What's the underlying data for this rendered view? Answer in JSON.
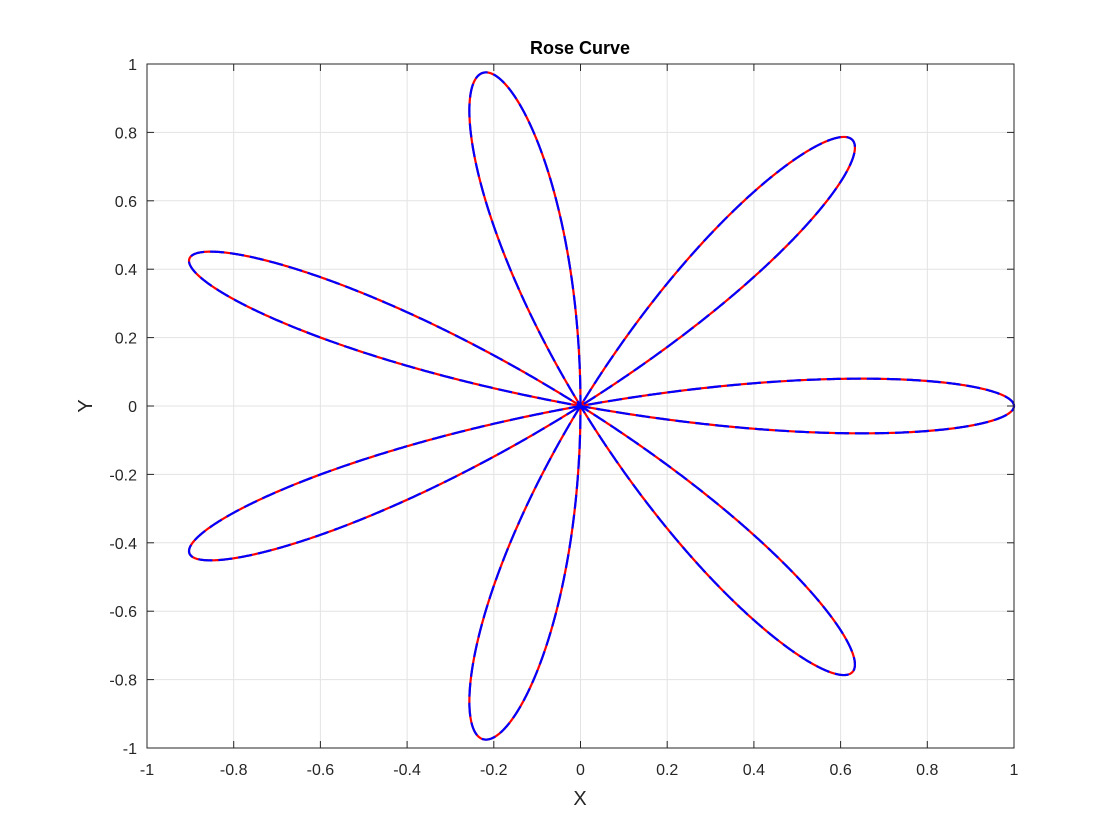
{
  "chart_data": {
    "type": "line",
    "title": "Rose Curve",
    "xlabel": "X",
    "ylabel": "Y",
    "xlim": [
      -1,
      1
    ],
    "ylim": [
      -1,
      1
    ],
    "xticks": [
      -1,
      -0.8,
      -0.6,
      -0.4,
      -0.2,
      0,
      0.2,
      0.4,
      0.6,
      0.8,
      1
    ],
    "yticks": [
      -1,
      -0.8,
      -0.6,
      -0.4,
      -0.2,
      0,
      0.2,
      0.4,
      0.6,
      0.8,
      1
    ],
    "xtick_labels": [
      "-1",
      "-0.8",
      "-0.6",
      "-0.4",
      "-0.2",
      "0",
      "0.2",
      "0.4",
      "0.6",
      "0.8",
      "1"
    ],
    "ytick_labels": [
      "-1",
      "-0.8",
      "-0.6",
      "-0.4",
      "-0.2",
      "0",
      "0.2",
      "0.4",
      "0.6",
      "0.8",
      "1"
    ],
    "grid": true,
    "series": [
      {
        "equation": "r = cos(7θ)",
        "petals": 7,
        "color": "#ff0000",
        "style": "solid"
      },
      {
        "equation": "r = cos(7θ)",
        "petals": 7,
        "color": "#0000ff",
        "style": "dashed"
      }
    ]
  }
}
